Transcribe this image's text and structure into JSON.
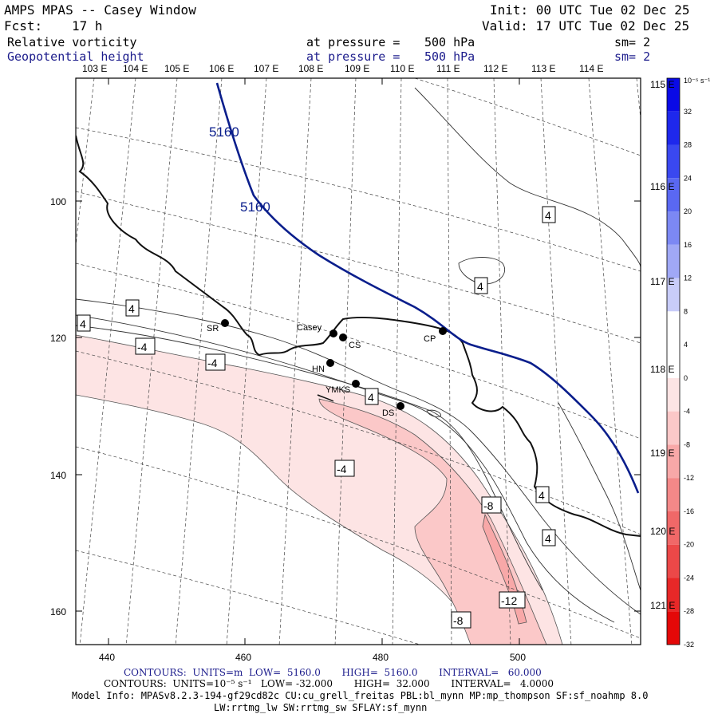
{
  "header": {
    "title": "AMPS MPAS -- Casey Window",
    "init": "Init: 00 UTC Tue 02 Dec 25",
    "fcst_label": "Fcst:",
    "fcst_value": "17 h",
    "valid": "Valid: 17 UTC Tue 02 Dec 25"
  },
  "fields": [
    {
      "name": "Relative vorticity",
      "pressure_text": "at pressure =",
      "pressure_value": "500 hPa",
      "smoothing": "sm= 2"
    },
    {
      "name": "Geopotential height",
      "pressure_text": "at pressure =",
      "pressure_value": "500 hPa",
      "smoothing": "sm= 2"
    }
  ],
  "axes": {
    "top_longitudes": [
      "103 E",
      "104 E",
      "105 E",
      "106 E",
      "107 E",
      "108 E",
      "109 E",
      "110 E",
      "111 E",
      "112 E",
      "113 E",
      "114 E"
    ],
    "right_longitudes": [
      "115 E",
      "116 E",
      "117 E",
      "118 E",
      "119 E",
      "120 E",
      "121 E"
    ],
    "left_ticks": [
      "100",
      "120",
      "140",
      "160"
    ],
    "bottom_ticks": [
      "440",
      "460",
      "480",
      "500"
    ]
  },
  "colorbar": {
    "unit": "10⁻⁵ s⁻¹",
    "labels": [
      "32",
      "28",
      "24",
      "20",
      "16",
      "12",
      "8",
      "4",
      "0",
      "-4",
      "-8",
      "-12",
      "-16",
      "-20",
      "-24",
      "-28",
      "-32"
    ],
    "colors": [
      "#0a0ae6",
      "#1e28ec",
      "#3a48f0",
      "#5a68f2",
      "#7c88f4",
      "#a0a8f6",
      "#c8ccf9",
      "#ffffff",
      "#ffffff",
      "#fde4e4",
      "#fbc8c8",
      "#f8a8a8",
      "#f48888",
      "#f06868",
      "#ec4848",
      "#e82828",
      "#e40808"
    ]
  },
  "contour_labels": {
    "height": [
      "5160",
      "5160"
    ],
    "vorticity": [
      "4",
      "4",
      "4",
      "4",
      "4",
      "4",
      "4",
      "-4",
      "-4",
      "-4",
      "-8",
      "-12",
      "-8"
    ]
  },
  "stations": [
    "SR",
    "Casey",
    "CS",
    "HN",
    "YMKS",
    "DS",
    "CP"
  ],
  "footer": {
    "line1": "CONTOURS:  UNITS=m  LOW=  5160.0       HIGH=  5160.0       INTERVAL=   60.000",
    "line2": "CONTOURS:  UNITS=10⁻⁵ s⁻¹   LOW= -32.000       HIGH=  32.000       INTERVAL=   4.0000",
    "line3": "Model Info: MPASv8.2.3-194-gf29cd82c CU:cu_grell_freitas PBL:bl_mynn MP:mp_thompson SF:sf_noahmp 8.0",
    "line4": "LW:rrtmg_lw SW:rrtmg_sw SFLAY:sf_mynn"
  }
}
